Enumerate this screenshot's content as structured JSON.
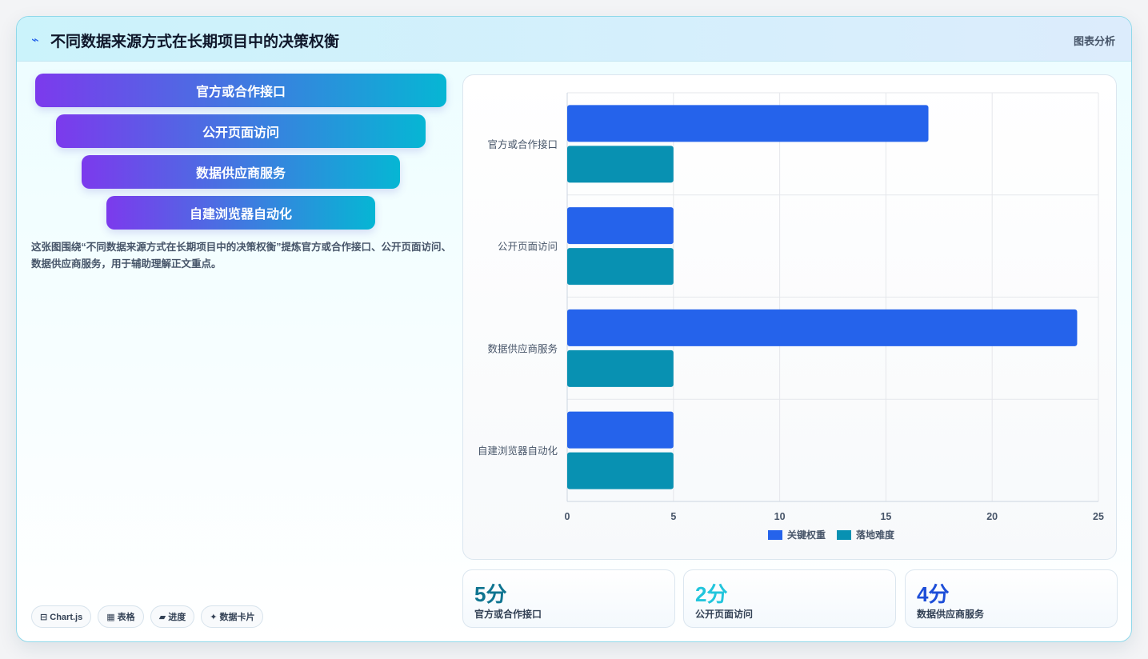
{
  "header": {
    "icon": "chart-line-icon",
    "title": "不同数据来源方式在长期项目中的决策权衡",
    "tag": "图表分析"
  },
  "funnel": {
    "items": [
      "官方或合作接口",
      "公开页面访问",
      "数据供应商服务",
      "自建浏览器自动化"
    ],
    "gradient": [
      "#7c3aed",
      "#06b6d4"
    ]
  },
  "description": "这张图围绕“不同数据来源方式在长期项目中的决策权衡”提炼官方或合作接口、公开页面访问、数据供应商服务，用于辅助理解正文重点。",
  "pills": [
    {
      "icon": "chart-icon",
      "label": "⊟ Chart.js"
    },
    {
      "icon": "table-icon",
      "label": "▦ 表格"
    },
    {
      "icon": "progress-icon",
      "label": "▰ 进度"
    },
    {
      "icon": "sparkle-icon",
      "label": "✦ 数据卡片"
    }
  ],
  "chart_data": {
    "type": "bar",
    "orientation": "horizontal",
    "categories": [
      "官方或合作接口",
      "公开页面访问",
      "数据供应商服务",
      "自建浏览器自动化"
    ],
    "series": [
      {
        "name": "关键权重",
        "values": [
          17,
          5,
          24,
          5
        ],
        "color": "#2563eb"
      },
      {
        "name": "落地难度",
        "values": [
          5,
          5,
          5,
          5
        ],
        "color": "#0891b2"
      }
    ],
    "xlim": [
      0,
      25
    ],
    "xticks": [
      0,
      5,
      10,
      15,
      20,
      25
    ],
    "grid": true,
    "legend": "bottom"
  },
  "stats": [
    {
      "value": "5分",
      "label": "官方或合作接口",
      "color": "#0e7490"
    },
    {
      "value": "2分",
      "label": "公开页面访问",
      "color": "#22c5dc"
    },
    {
      "value": "4分",
      "label": "数据供应商服务",
      "color": "#1d4ed8"
    }
  ]
}
